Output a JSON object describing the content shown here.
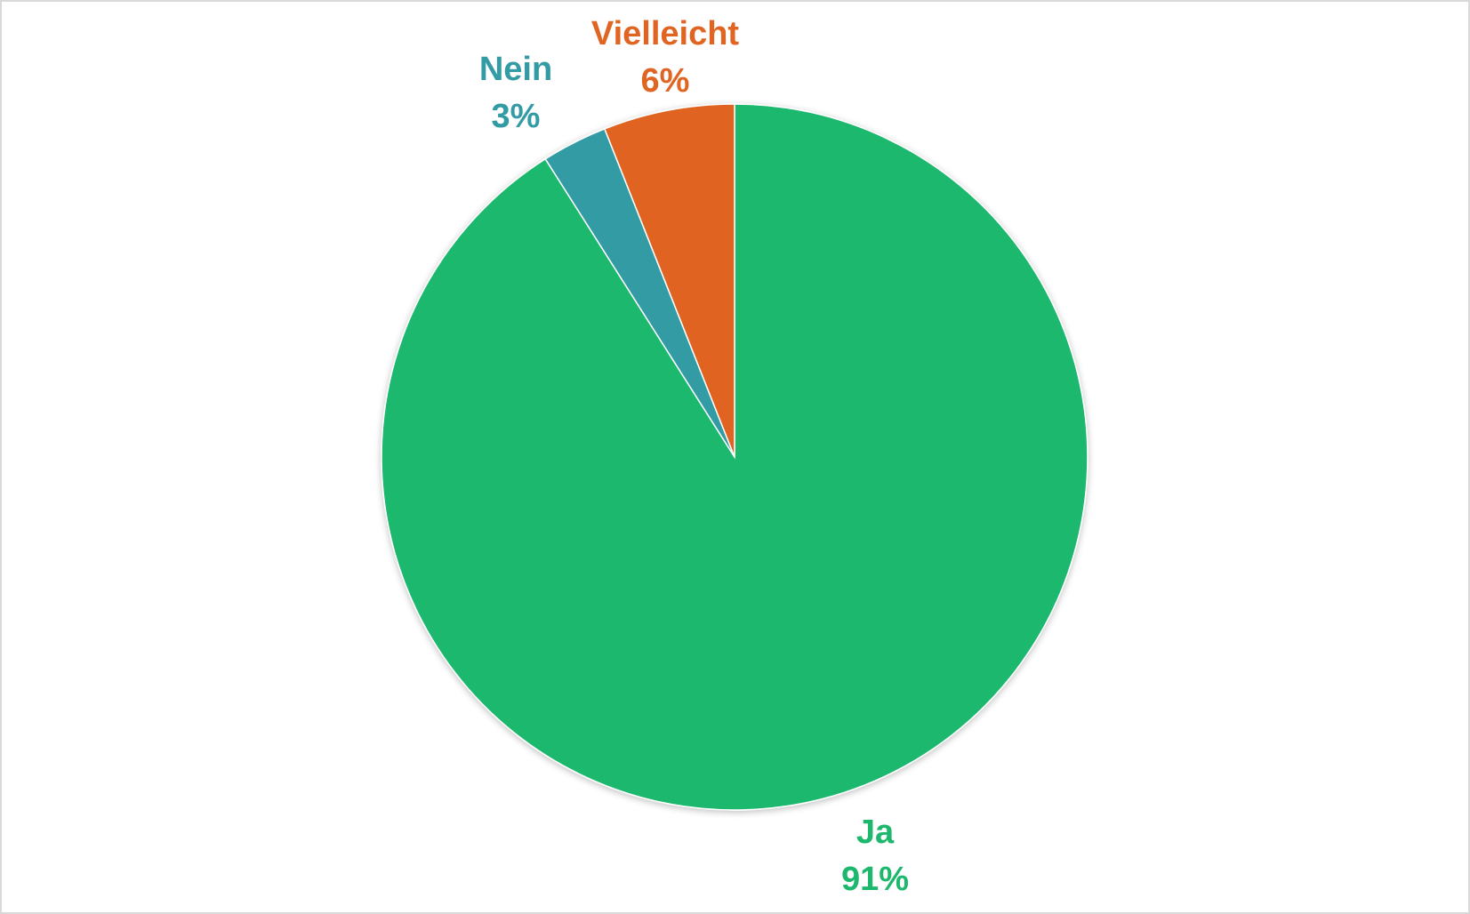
{
  "chart_data": {
    "type": "pie",
    "title": "",
    "start_angle_deg": 0,
    "direction": "clockwise",
    "slices": [
      {
        "label": "Ja",
        "value": 91,
        "display": "91%",
        "color": "#1db86e"
      },
      {
        "label": "Nein",
        "value": 3,
        "display": "3%",
        "color": "#339ba3"
      },
      {
        "label": "Vielleicht",
        "value": 6,
        "display": "6%",
        "color": "#e06422"
      }
    ],
    "legend": "none",
    "data_labels": "outside, category name and percentage"
  }
}
